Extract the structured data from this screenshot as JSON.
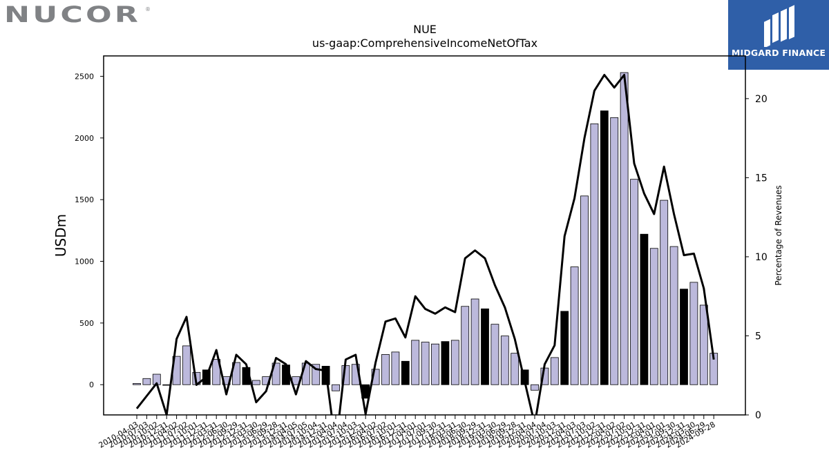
{
  "logo": {
    "brand_text": "NUCOR",
    "registered_mark": "®",
    "color": "#808285"
  },
  "badge": {
    "label": "MIDGARD FINANCE",
    "background": "#2f5fa8",
    "icon": "midgard-m-logo-icon"
  },
  "chart_data": {
    "type": "bar",
    "title": "NUE",
    "subtitle": "us-gaap:ComprehensiveIncomeNetOfTax",
    "ylabel": "USDm",
    "y2label": "Percentage of Revenues",
    "ylim": [
      -245,
      2665
    ],
    "y2lim": [
      0,
      22.7
    ],
    "yticks": [
      0,
      500,
      1000,
      1500,
      2000,
      2500
    ],
    "y2ticks": [
      0,
      5,
      10,
      15,
      20
    ],
    "grid": false,
    "legend": "none",
    "bar_color": "#bcb9dc",
    "highlight_color": "#000000",
    "line_color": "#000000",
    "categories": [
      "2010-04-03",
      "2010-07-03",
      "2010-10-02",
      "2010-12-31",
      "2011-04-02",
      "2011-07-02",
      "2011-10-01",
      "2011-12-31",
      "2012-03-31",
      "2012-06-30",
      "2012-09-29",
      "2012-12-31",
      "2013-03-30",
      "2013-06-29",
      "2013-09-28",
      "2013-12-31",
      "2014-04-05",
      "2014-07-05",
      "2014-10-04",
      "2014-12-31",
      "2015-04-04",
      "2015-07-04",
      "2015-10-03",
      "2015-12-31",
      "2016-04-02",
      "2016-07-02",
      "2016-10-01",
      "2016-12-31",
      "2017-04-01",
      "2017-07-01",
      "2017-09-30",
      "2017-12-31",
      "2018-03-31",
      "2018-06-30",
      "2018-09-29",
      "2018-12-31",
      "2019-03-30",
      "2019-06-29",
      "2019-09-28",
      "2019-12-31",
      "2020-04-04",
      "2020-07-04",
      "2020-10-03",
      "2020-12-31",
      "2021-04-03",
      "2021-07-03",
      "2021-10-02",
      "2021-12-31",
      "2022-04-02",
      "2022-07-02",
      "2022-10-01",
      "2022-12-31",
      "2023-04-01",
      "2023-07-01",
      "2023-09-30",
      "2023-12-31",
      "2024-03-30",
      "2024-06-29",
      "2024-09-28"
    ],
    "values": [
      10,
      50,
      85,
      -5,
      230,
      315,
      100,
      120,
      205,
      65,
      180,
      140,
      35,
      65,
      175,
      160,
      65,
      175,
      165,
      150,
      -50,
      155,
      165,
      -110,
      125,
      245,
      265,
      190,
      360,
      345,
      330,
      350,
      360,
      635,
      695,
      615,
      490,
      395,
      255,
      120,
      -45,
      135,
      220,
      595,
      955,
      1530,
      2115,
      2220,
      2165,
      2530,
      1665,
      1220,
      1105,
      1495,
      1120,
      775,
      830,
      645,
      255
    ],
    "highlight": [
      false,
      false,
      false,
      false,
      false,
      false,
      false,
      true,
      false,
      false,
      false,
      true,
      false,
      false,
      false,
      true,
      false,
      false,
      false,
      true,
      false,
      false,
      false,
      true,
      false,
      false,
      false,
      true,
      false,
      false,
      false,
      true,
      false,
      false,
      false,
      true,
      false,
      false,
      false,
      true,
      false,
      false,
      false,
      true,
      false,
      false,
      false,
      true,
      false,
      false,
      false,
      true,
      false,
      false,
      false,
      true,
      false,
      false,
      false
    ],
    "series": [
      {
        "values": [
          0.4,
          1.2,
          2.0,
          0.0,
          4.8,
          6.2,
          1.9,
          2.4,
          4.1,
          1.3,
          3.8,
          3.2,
          0.8,
          1.5,
          3.6,
          3.2,
          1.3,
          3.4,
          2.9,
          2.8,
          -2.0,
          3.5,
          3.8,
          0.05,
          3.3,
          5.9,
          6.1,
          4.9,
          7.5,
          6.7,
          6.4,
          6.8,
          6.5,
          9.9,
          10.4,
          9.9,
          8.2,
          6.8,
          4.8,
          2.1,
          -0.6,
          3.2,
          4.4,
          11.3,
          13.7,
          17.5,
          20.5,
          21.5,
          20.7,
          21.5,
          15.9,
          14.0,
          12.7,
          15.7,
          12.7,
          10.1,
          10.2,
          8.0,
          3.5
        ]
      }
    ]
  }
}
